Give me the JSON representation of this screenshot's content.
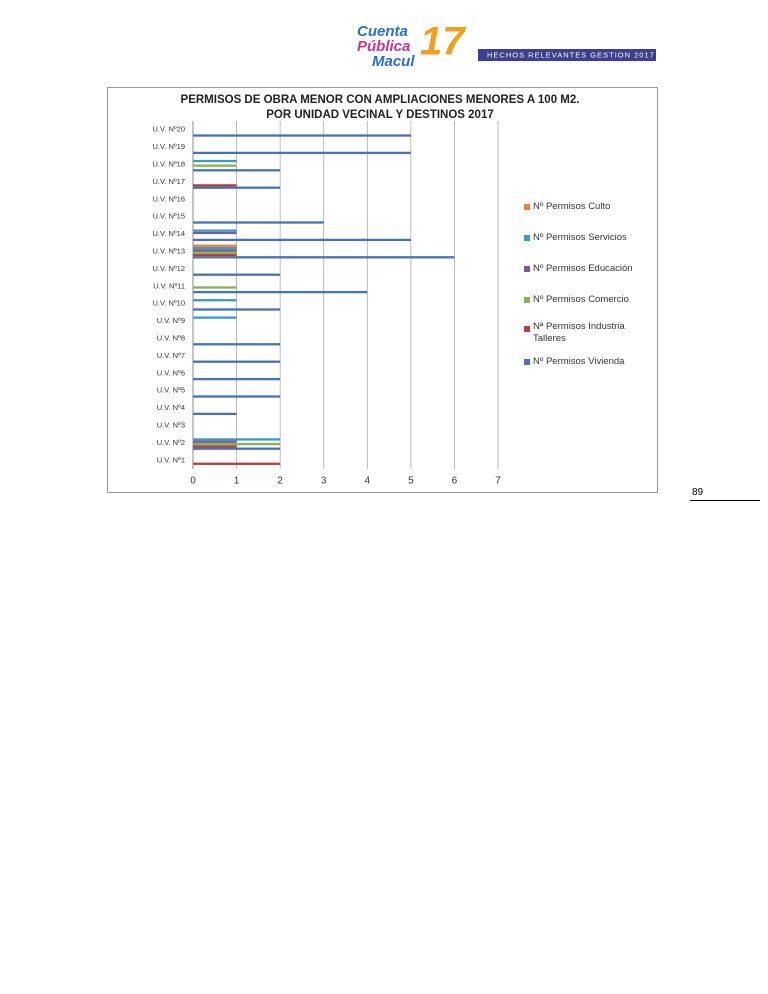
{
  "header": {
    "logo_lines": [
      "Cuenta",
      "Pública",
      "Macul"
    ],
    "logo_year": "17",
    "tagline": "HECHOS RELEVANTES GESTION 2017"
  },
  "chart_data": {
    "type": "bar",
    "orientation": "horizontal",
    "title": [
      "PERMISOS DE OBRA MENOR CON AMPLIACIONES MENORES A 100 M2.",
      "POR UNIDAD VECINAL Y DESTINOS 2017"
    ],
    "categories": [
      "U.V. Nº1",
      "U.V. Nº2",
      "U.V. Nº3",
      "U.V. Nº4",
      "U.V. Nº5",
      "U.V. Nº6",
      "U.V. Nº7",
      "U.V. Nº8",
      "U.V. Nº9",
      "U.V. Nº10",
      "U.V. Nº11",
      "U.V. Nº12",
      "U.V. Nº13",
      "U.V. Nº14",
      "U.V. Nº15",
      "U.V. Nº16",
      "U.V. Nº17",
      "U.V. Nº18",
      "U.V. Nº19",
      "U.V. Nº20"
    ],
    "series": [
      {
        "name": "Nº Permisos Vivienda",
        "color": "#4a72b0",
        "values": [
          0,
          2,
          0,
          1,
          2,
          2,
          2,
          2,
          0,
          2,
          4,
          2,
          6,
          5,
          3,
          0,
          2,
          2,
          5,
          5
        ]
      },
      {
        "name": "Nª Permisos Industria Talleres",
        "color": "#b0413e",
        "values": [
          2,
          1,
          0,
          0,
          0,
          0,
          0,
          0,
          0,
          0,
          0,
          0,
          1,
          0,
          0,
          0,
          1,
          0,
          0,
          0
        ]
      },
      {
        "name": "Nº Permisos Comercio",
        "color": "#8bb054",
        "values": [
          0,
          2,
          0,
          0,
          0,
          0,
          0,
          0,
          0,
          0,
          1,
          0,
          1,
          0,
          0,
          0,
          0,
          1,
          0,
          0
        ]
      },
      {
        "name": "Nº Permisos Educación",
        "color": "#7a5a9e",
        "values": [
          0,
          1,
          0,
          0,
          0,
          0,
          0,
          0,
          0,
          0,
          0,
          0,
          1,
          1,
          0,
          0,
          0,
          0,
          0,
          0
        ]
      },
      {
        "name": "Nº Permisos Servicios",
        "color": "#3d9bc1",
        "values": [
          0,
          2,
          0,
          0,
          0,
          0,
          0,
          0,
          1,
          1,
          0,
          0,
          1,
          1,
          0,
          0,
          0,
          1,
          0,
          0
        ]
      },
      {
        "name": "Nº Permisos Culto",
        "color": "#e9823a",
        "values": [
          0,
          0,
          0,
          0,
          0,
          0,
          0,
          0,
          0,
          0,
          0,
          0,
          1,
          0,
          0,
          0,
          0,
          0,
          0,
          0
        ]
      }
    ],
    "xlim": [
      0,
      7
    ],
    "xticks": [
      0,
      1,
      2,
      3,
      4,
      5,
      6,
      7
    ],
    "grid": true,
    "legend": "right"
  },
  "page_number": "89"
}
